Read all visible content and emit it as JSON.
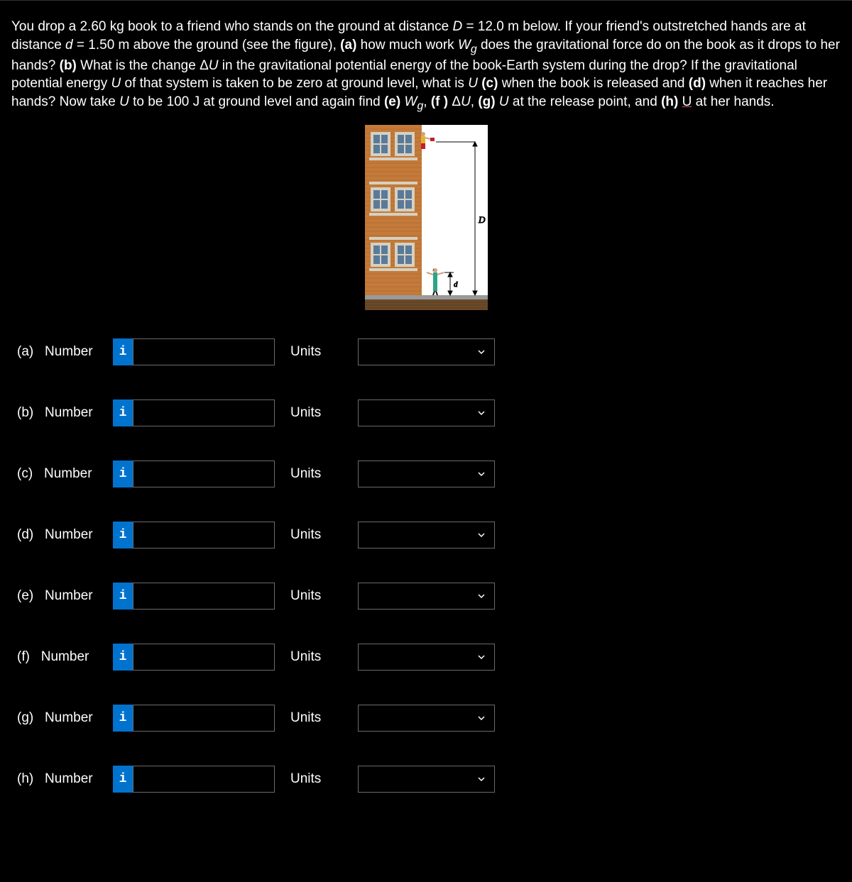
{
  "problem": {
    "text_html": "You drop a 2.60 kg book to a friend who stands on the ground at distance <em>D</em> = 12.0 m below. If your friend's outstretched hands are at distance <em>d</em> = 1.50 m above the ground (see the figure), <strong>(a)</strong> how much work <em>W<sub>g</sub></em> does the gravitational force do on the book as it drops to her hands? <strong>(b)</strong> What is the change Δ<em>U</em> in the gravitational potential energy of the book-Earth system during the drop? If the gravitational potential energy <em>U</em> of that system is taken to be zero at ground level, what is <em>U</em> <strong>(c)</strong> when the book is released and <strong>(d)</strong> when it reaches her hands? Now take <em>U</em> to be 100 J at ground level and again find <strong>(e)</strong> <em>W<sub>g</sub></em>, <strong>(f )</strong> Δ<em>U</em>, <strong>(g)</strong> <em>U</em> at the release point, and <strong>(h)</strong> <span class=\"underline\">U</span> at her hands."
  },
  "figure": {
    "bg_color": "#ffffff",
    "building_color": "#c37a3a",
    "window_color": "#5a7a9a",
    "trim_color": "#d6d0c0",
    "ground_color": "#6b4a2a",
    "label_D": "D",
    "label_d": "d",
    "person_shirt": "#2aa58a",
    "person_skin": "#caa37a",
    "person_hair": "#1a1a1a",
    "dropper_shirt": "#e8b030",
    "dropper_pants": "#c02030",
    "book_color": "#c02030"
  },
  "answers": {
    "number_word": "Number",
    "units_word": "Units",
    "info_glyph": "i",
    "rows": [
      {
        "part": "(a)",
        "value": "",
        "units": ""
      },
      {
        "part": "(b)",
        "value": "",
        "units": ""
      },
      {
        "part": "(c)",
        "value": "",
        "units": ""
      },
      {
        "part": "(d)",
        "value": "",
        "units": ""
      },
      {
        "part": "(e)",
        "value": "",
        "units": ""
      },
      {
        "part": "(f)",
        "value": "",
        "units": ""
      },
      {
        "part": "(g)",
        "value": "",
        "units": ""
      },
      {
        "part": "(h)",
        "value": "",
        "units": ""
      }
    ]
  },
  "colors": {
    "page_bg": "#000000",
    "text": "#ffffff",
    "input_border": "#6b6b6b",
    "info_bg": "#0073cf",
    "underline": "#cc5555"
  }
}
